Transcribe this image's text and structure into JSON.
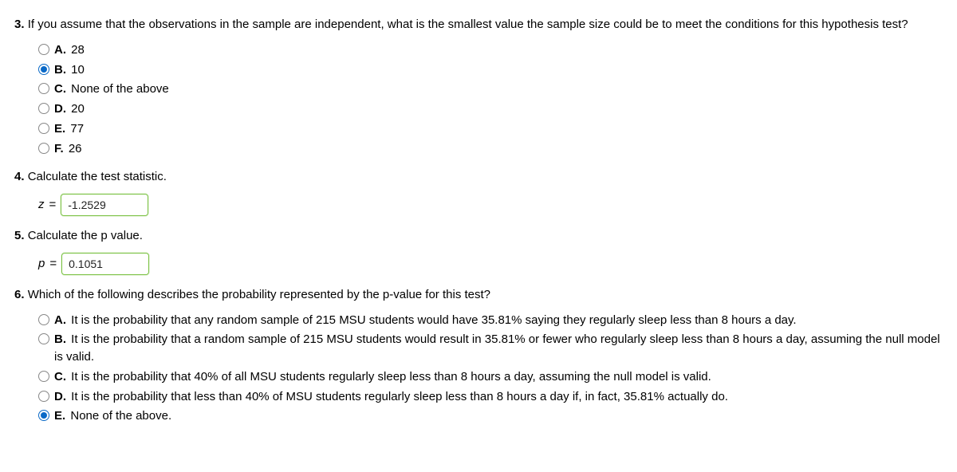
{
  "q3": {
    "number": "3.",
    "text": "If you assume that the observations in the sample are independent, what is the smallest value the sample size could be to meet the conditions for this hypothesis test?",
    "choices": [
      {
        "letter": "A.",
        "text": "28",
        "selected": false
      },
      {
        "letter": "B.",
        "text": "10",
        "selected": true
      },
      {
        "letter": "C.",
        "text": "None of the above",
        "selected": false
      },
      {
        "letter": "D.",
        "text": "20",
        "selected": false
      },
      {
        "letter": "E.",
        "text": "77",
        "selected": false
      },
      {
        "letter": "F.",
        "text": "26",
        "selected": false
      }
    ]
  },
  "q4": {
    "number": "4.",
    "text": "Calculate the test statistic.",
    "symbol": "z",
    "equals": "=",
    "value": "-1.2529"
  },
  "q5": {
    "number": "5.",
    "text": "Calculate the p value.",
    "symbol": "p",
    "equals": "=",
    "value": "0.1051"
  },
  "q6": {
    "number": "6.",
    "text": "Which of the following describes the probability represented by the p-value for this test?",
    "choices": [
      {
        "letter": "A.",
        "text": "It is the probability that any random sample of 215 MSU students would have 35.81% saying they regularly sleep less than 8 hours a day.",
        "selected": false
      },
      {
        "letter": "B.",
        "text": "It is the probability that a random sample of 215 MSU students would result in 35.81% or fewer who regularly sleep less than 8 hours a day, assuming the null model is valid.",
        "selected": false
      },
      {
        "letter": "C.",
        "text": "It is the probability that 40% of all MSU students regularly sleep less than 8 hours a day, assuming the null model is valid.",
        "selected": false
      },
      {
        "letter": "D.",
        "text": "It is the probability that less than 40% of MSU students regularly sleep less than 8 hours a day if, in fact, 35.81% actually do.",
        "selected": false
      },
      {
        "letter": "E.",
        "text": "None of the above.",
        "selected": true
      }
    ]
  },
  "style": {
    "input_border_color": "#7ac142",
    "radio_selected_color": "#0a69c7",
    "font_size_pt": 11,
    "background_color": "#ffffff",
    "text_color": "#000000"
  }
}
